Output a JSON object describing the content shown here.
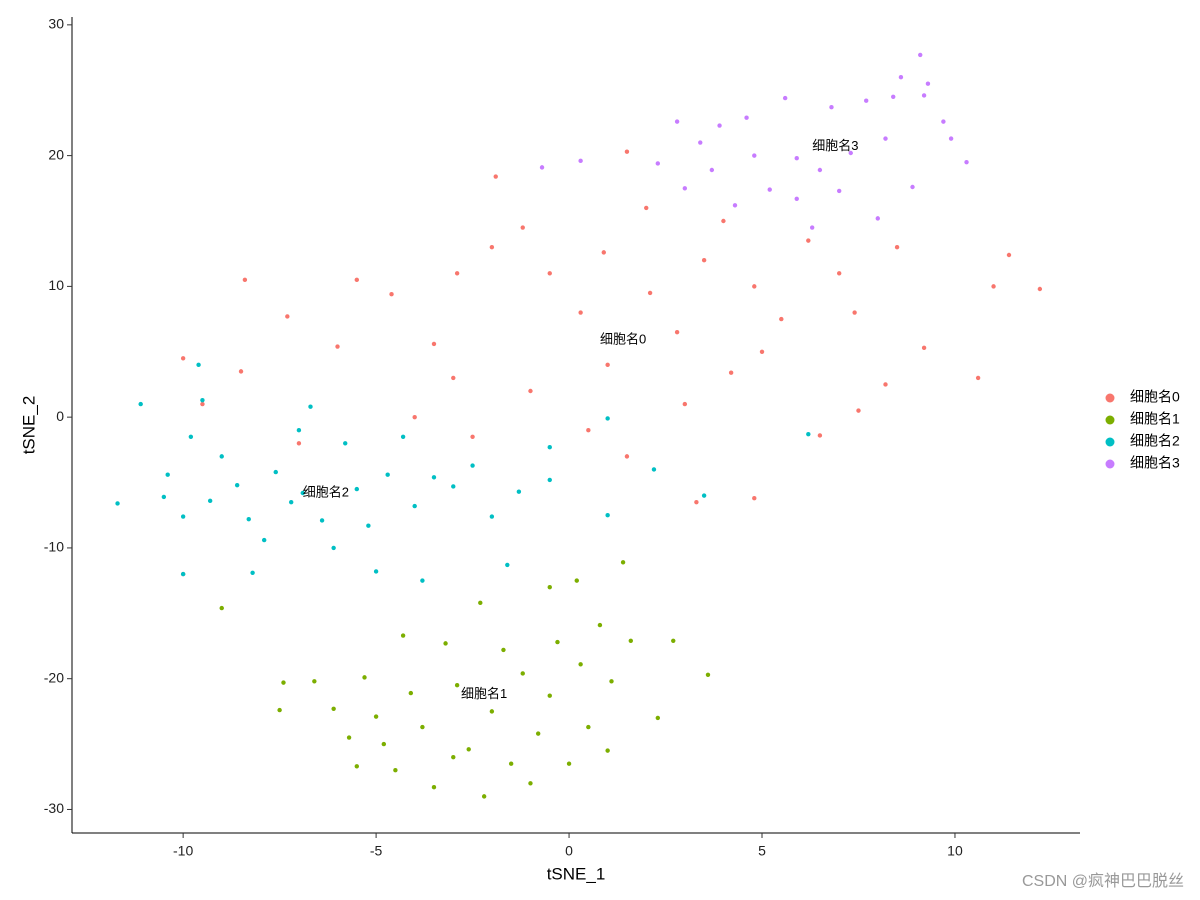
{
  "chart_data": {
    "type": "scatter",
    "x_label": "tSNE_1",
    "y_label": "tSNE_2",
    "xlim": [
      -12.88,
      13.24
    ],
    "ylim": [
      -31.8,
      30.6
    ],
    "xticks": [
      -10,
      -5,
      0,
      5,
      10
    ],
    "yticks": [
      -30,
      -20,
      -10,
      0,
      10,
      20,
      30
    ],
    "grid": false,
    "legend": "right",
    "series": [
      {
        "name": "细胞名0",
        "color": "#F8766D",
        "x": [
          -10,
          -8.4,
          -8.5,
          -7.3,
          -5.5,
          -4.6,
          -3.5,
          -2.9,
          -2,
          -1.2,
          -0.5,
          0.3,
          0.9,
          1.5,
          -1.9,
          2.1,
          2.8,
          3.5,
          4.2,
          4.8,
          5.5,
          6.2,
          7,
          7.4,
          8.5,
          9.2,
          10.6,
          11,
          12.2,
          11.4,
          -4,
          -2.5,
          -1,
          0.5,
          1.5,
          3.3,
          4.8,
          6.5,
          7.5,
          8.2,
          -6,
          -7,
          -10,
          -3,
          1,
          3,
          5,
          2,
          4,
          -9.5
        ],
        "y": [
          4.5,
          10.5,
          3.5,
          7.7,
          10.5,
          9.4,
          5.6,
          11,
          13,
          14.5,
          11,
          8,
          12.6,
          20.3,
          18.4,
          9.5,
          6.5,
          12,
          3.4,
          10,
          7.5,
          13.5,
          11,
          8,
          13,
          5.3,
          3,
          10,
          9.8,
          12.4,
          0,
          -1.5,
          2,
          -1,
          -3,
          -6.5,
          -6.2,
          -1.4,
          0.5,
          2.5,
          5.4,
          -2,
          -12,
          3,
          4,
          1,
          5,
          16,
          15,
          1
        ]
      },
      {
        "name": "细胞名1",
        "color": "#7CAE00",
        "x": [
          -7.4,
          -7.5,
          -6.6,
          -6.1,
          -5.7,
          -5.5,
          -5.3,
          -5,
          -4.8,
          -4.5,
          -4.3,
          -4.1,
          -3.8,
          -3.5,
          -3.2,
          -2.9,
          -2.6,
          -2.3,
          -2.2,
          -2,
          -1.7,
          -1.5,
          -1.2,
          -0.8,
          -0.5,
          -0.3,
          0,
          0.3,
          0.5,
          0.8,
          1.1,
          1.4,
          1.6,
          2.3,
          2.7,
          3.6,
          -9,
          -0.5,
          1,
          -3,
          -1,
          0.2
        ],
        "y": [
          -20.3,
          -22.4,
          -20.2,
          -22.3,
          -24.5,
          -26.7,
          -19.9,
          -22.9,
          -25,
          -27,
          -16.7,
          -21.1,
          -23.7,
          -28.3,
          -17.3,
          -20.5,
          -25.4,
          -14.2,
          -29,
          -22.5,
          -17.8,
          -26.5,
          -19.6,
          -24.2,
          -21.3,
          -17.2,
          -26.5,
          -18.9,
          -23.7,
          -15.9,
          -20.2,
          -11.1,
          -17.1,
          -23,
          -17.1,
          -19.7,
          -14.6,
          -13,
          -25.5,
          -26,
          -28,
          -12.5
        ]
      },
      {
        "name": "细胞名2",
        "color": "#00BFC4",
        "x": [
          -11.7,
          -11.1,
          -10.5,
          -10.4,
          -10,
          -9.8,
          -9.6,
          -9.5,
          -9.3,
          -9,
          -8.6,
          -8.3,
          -8.2,
          -7.9,
          -7.6,
          -7.2,
          -7,
          -6.9,
          -6.7,
          -6.4,
          -6.1,
          -5.8,
          -5.5,
          -5.2,
          -5,
          -4.7,
          -4.3,
          -4,
          -3.8,
          -3.5,
          -3,
          -2.5,
          -2,
          -1.6,
          -1.3,
          -0.5,
          -0.5,
          1,
          1,
          2.2,
          3.5,
          6.2,
          -10
        ],
        "y": [
          -6.6,
          1,
          -6.1,
          -4.4,
          -7.6,
          -1.5,
          4,
          1.3,
          -6.4,
          -3,
          -5.2,
          -7.8,
          -11.9,
          -9.4,
          -4.2,
          -6.5,
          -1,
          -5.8,
          0.8,
          -7.9,
          -10,
          -2,
          -5.5,
          -8.3,
          -11.8,
          -4.4,
          -1.5,
          -6.8,
          -12.5,
          -4.6,
          -5.3,
          -3.7,
          -7.6,
          -11.3,
          -5.7,
          -4.8,
          -2.3,
          -7.5,
          -0.1,
          -4,
          -6,
          -1.3,
          -12
        ]
      },
      {
        "name": "细胞名3",
        "color": "#C77CFF",
        "x": [
          2.3,
          2.8,
          3,
          3.4,
          3.7,
          3.9,
          4.3,
          4.6,
          4.8,
          5.2,
          5.6,
          5.9,
          6.3,
          6.5,
          6.8,
          7,
          7.3,
          7.7,
          8,
          8.2,
          8.6,
          8.9,
          9.1,
          9.2,
          9.7,
          9.9,
          10.3,
          -0.7,
          0.3,
          5.9,
          9.3,
          8.4
        ],
        "y": [
          19.4,
          22.6,
          17.5,
          21,
          18.9,
          22.3,
          16.2,
          22.9,
          20,
          17.4,
          24.4,
          19.8,
          14.5,
          18.9,
          23.7,
          17.3,
          20.2,
          24.2,
          15.2,
          21.3,
          26,
          17.6,
          27.7,
          24.6,
          22.6,
          21.3,
          19.5,
          19.1,
          19.6,
          16.7,
          25.5,
          24.5
        ]
      }
    ],
    "annotations": [
      {
        "text": "细胞名0",
        "x": 1.4,
        "y": 5.9
      },
      {
        "text": "细胞名1",
        "x": -2.2,
        "y": -21.2
      },
      {
        "text": "细胞名2",
        "x": -6.3,
        "y": -5.8
      },
      {
        "text": "细胞名3",
        "x": 6.9,
        "y": 20.7
      }
    ]
  },
  "watermark": "CSDN @疯神巴巴脱丝"
}
